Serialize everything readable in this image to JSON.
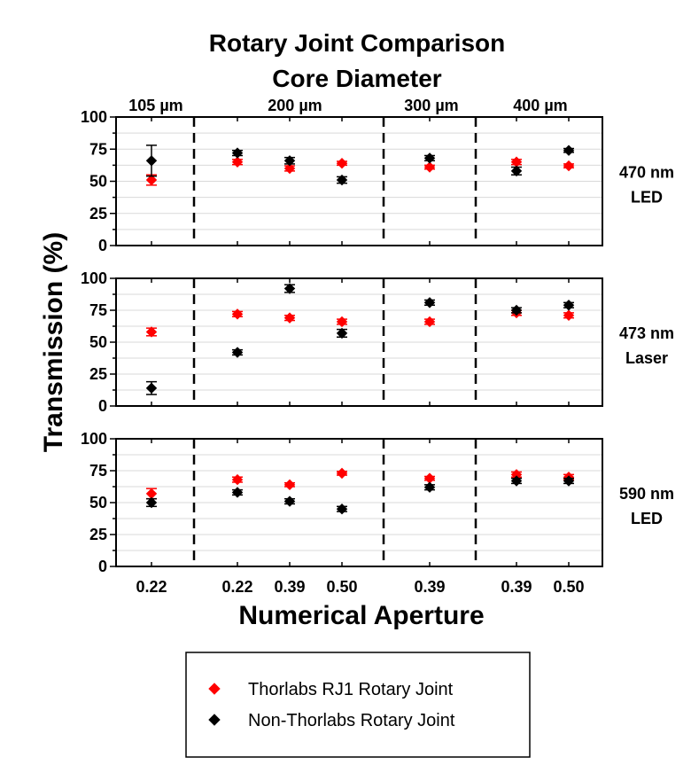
{
  "chart_data": {
    "type": "scatter",
    "title": "Rotary Joint Comparison",
    "subtitle": "Core Diameter",
    "xlabel": "Numerical Aperture",
    "ylabel": "Transmission (%)",
    "ylim": [
      0,
      100
    ],
    "yticks": [
      "0",
      "25",
      "50",
      "75",
      "100"
    ],
    "grid": true,
    "legend_placement": "bottom",
    "groups": [
      "105 µm",
      "200 µm",
      "300 µm",
      "400 µm"
    ],
    "categories": [
      "0.22",
      "0.22",
      "0.39",
      "0.50",
      "0.39",
      "0.39",
      "0.50"
    ],
    "category_groups": [
      0,
      1,
      1,
      1,
      2,
      3,
      3
    ],
    "panels": [
      {
        "label_line1": "470 nm",
        "label_line2": "LED",
        "series": [
          {
            "name": "Thorlabs RJ1 Rotary Joint",
            "color": "#ff0000",
            "values": [
              51,
              65,
              60,
              64,
              61,
              65,
              62
            ],
            "errors": [
              4,
              2,
              2,
              1.5,
              1.5,
              2,
              1.5
            ]
          },
          {
            "name": "Non-Thorlabs Rotary Joint",
            "color": "#000000",
            "values": [
              66,
              72,
              66,
              51,
              68,
              58,
              74
            ],
            "errors": [
              12,
              2,
              2.5,
              2.5,
              2,
              3,
              1.5
            ]
          }
        ]
      },
      {
        "label_line1": "473 nm",
        "label_line2": "Laser",
        "series": [
          {
            "name": "Thorlabs RJ1 Rotary Joint",
            "color": "#ff0000",
            "values": [
              58,
              72,
              69,
              66,
              66,
              73,
              71
            ],
            "errors": [
              3,
              2,
              2,
              2,
              2,
              2,
              2
            ]
          },
          {
            "name": "Non-Thorlabs Rotary Joint",
            "color": "#000000",
            "values": [
              14,
              42,
              92,
              57,
              81,
              75,
              79
            ],
            "errors": [
              5,
              2,
              3,
              3,
              2,
              2,
              2
            ]
          }
        ]
      },
      {
        "label_line1": "590 nm",
        "label_line2": "LED",
        "series": [
          {
            "name": "Thorlabs RJ1 Rotary Joint",
            "color": "#ff0000",
            "values": [
              57,
              68,
              64,
              73,
              69,
              72,
              70
            ],
            "errors": [
              4,
              2,
              1.5,
              1.5,
              1.5,
              2,
              2
            ]
          },
          {
            "name": "Non-Thorlabs Rotary Joint",
            "color": "#000000",
            "values": [
              50,
              58,
              51,
              45,
              62,
              67,
              67
            ],
            "errors": [
              3,
              2,
              2,
              2,
              2,
              2,
              2
            ]
          }
        ]
      }
    ],
    "legend": [
      {
        "label": "Thorlabs RJ1 Rotary Joint",
        "color": "#ff0000"
      },
      {
        "label": "Non-Thorlabs Rotary Joint",
        "color": "#000000"
      }
    ]
  }
}
